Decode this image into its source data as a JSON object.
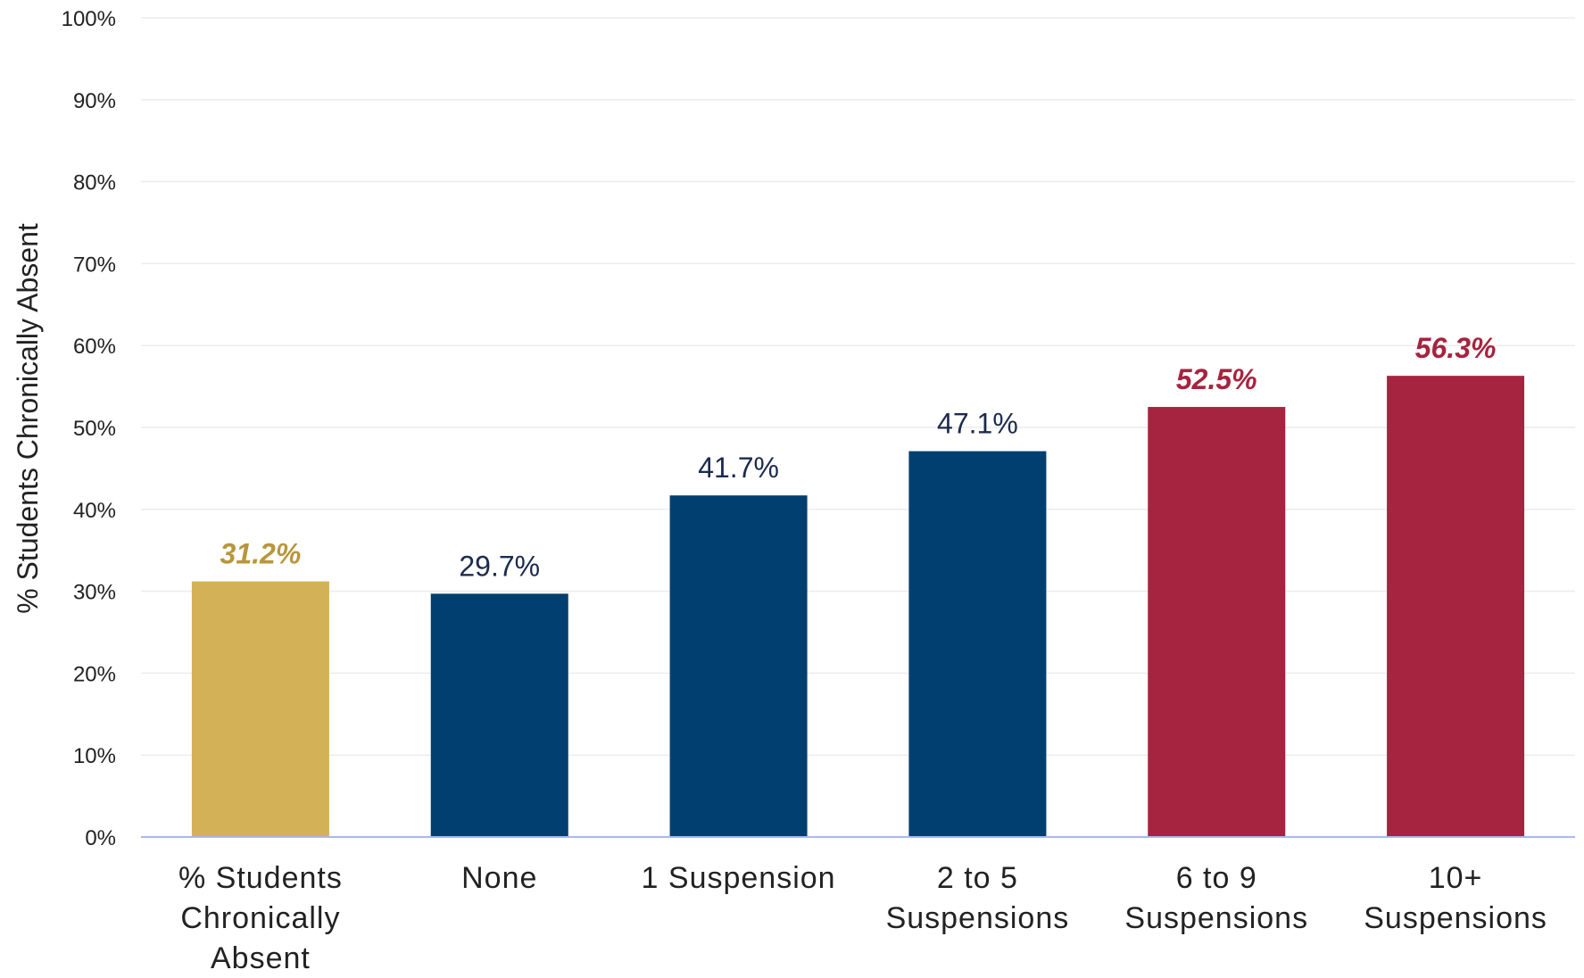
{
  "chart_data": {
    "type": "bar",
    "title": "",
    "xlabel": "",
    "ylabel": "% Students Chronically Absent",
    "ylim": [
      0,
      100
    ],
    "yticks": [
      0,
      10,
      20,
      30,
      40,
      50,
      60,
      70,
      80,
      90,
      100
    ],
    "ytick_labels": [
      "0%",
      "10%",
      "20%",
      "30%",
      "40%",
      "50%",
      "60%",
      "70%",
      "80%",
      "90%",
      "100%"
    ],
    "grid": true,
    "legend": "none",
    "categories": [
      [
        "% Students",
        "Chronically",
        "Absent"
      ],
      [
        "None"
      ],
      [
        "1 Suspension"
      ],
      [
        "2 to 5",
        "Suspensions"
      ],
      [
        "6 to 9",
        "Suspensions"
      ],
      [
        "10+",
        "Suspensions"
      ]
    ],
    "values": [
      31.2,
      29.7,
      41.7,
      47.1,
      52.5,
      56.3
    ],
    "value_labels": [
      "31.2%",
      "29.7%",
      "41.7%",
      "47.1%",
      "52.5%",
      "56.3%"
    ],
    "bar_colors": [
      "#d3b157",
      "#003f6f",
      "#003f6f",
      "#003f6f",
      "#a6243f",
      "#a6243f"
    ],
    "label_colors": [
      "#b8963b",
      "#1c2a4e",
      "#1c2a4e",
      "#1c2a4e",
      "#a6243f",
      "#a6243f"
    ],
    "label_emphasis": [
      true,
      false,
      false,
      false,
      true,
      true
    ]
  }
}
